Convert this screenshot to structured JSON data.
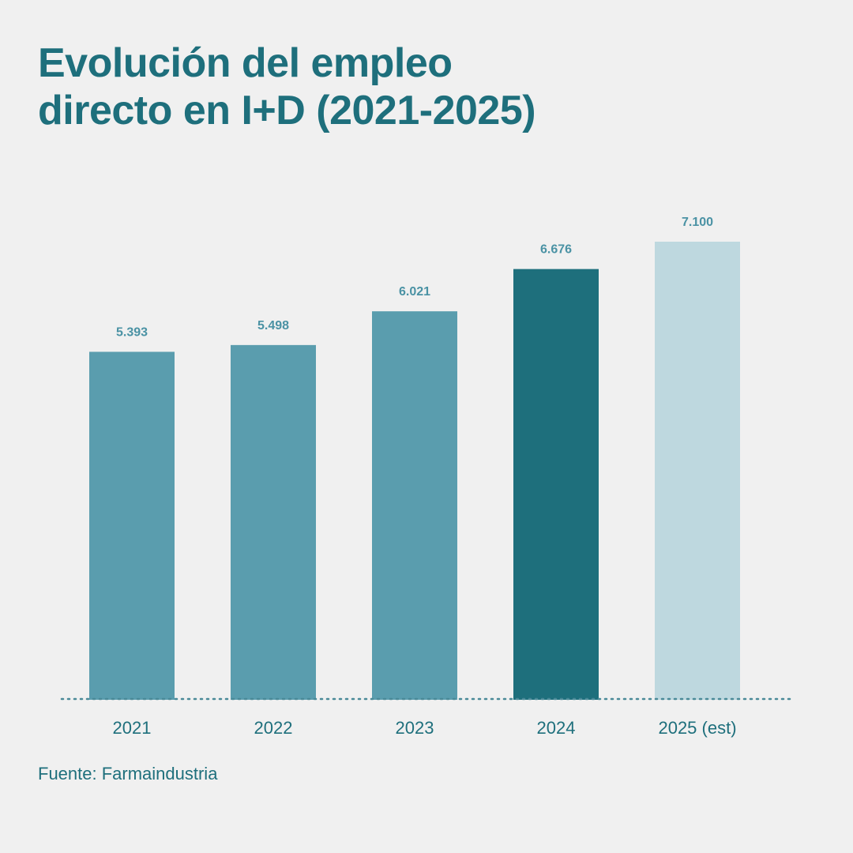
{
  "title": {
    "line1": "Evolución del empleo",
    "line2": "directo en I+D (2021-2025)"
  },
  "source": "Fuente: Farmaindustria",
  "colors": {
    "background": "#f0f0f0",
    "text": "#1e6f7c",
    "bar_default": "#5a9dae",
    "bar_highlight": "#1e6f7c",
    "bar_estimate": "#bed8df",
    "value_label": "#4a92a4",
    "baseline": "#4a8a98"
  },
  "chart_data": {
    "type": "bar",
    "title": "Evolución del empleo directo en I+D (2021-2025)",
    "categories": [
      "2021",
      "2022",
      "2023",
      "2024",
      "2025 (est)"
    ],
    "values": [
      5393,
      5498,
      6021,
      6676,
      7100
    ],
    "value_labels": [
      "5.393",
      "5.498",
      "6.021",
      "6.676",
      "7.100"
    ],
    "bar_styles": [
      "default",
      "default",
      "default",
      "highlight",
      "estimate"
    ],
    "xlabel": "",
    "ylabel": "",
    "ylim": [
      0,
      7100
    ],
    "grid": false,
    "legend": "none",
    "baseline": "dotted"
  }
}
